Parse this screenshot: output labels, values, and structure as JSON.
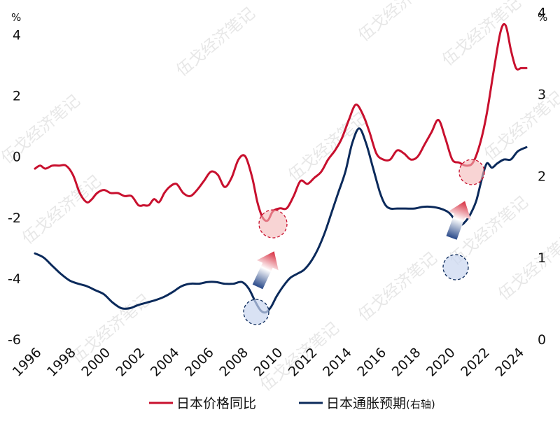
{
  "watermark": "伍戈经济笔记",
  "chart_data": {
    "type": "line",
    "left_axis": {
      "unit": "%",
      "ylim": [
        -6,
        5
      ],
      "ticks": [
        -6,
        -4,
        -2,
        0,
        2,
        4
      ]
    },
    "right_axis": {
      "unit": "%",
      "ylim": [
        0,
        4.1
      ],
      "ticks": [
        0,
        1,
        2,
        3,
        4
      ]
    },
    "x_ticks": [
      "1996",
      "1998",
      "2000",
      "2002",
      "2004",
      "2006",
      "2008",
      "2010",
      "2012",
      "2014",
      "2016",
      "2018",
      "2020",
      "2022",
      "2024"
    ],
    "series": [
      {
        "name": "日本价格同比",
        "axis": "left",
        "color": "#c8102e",
        "x": [
          1996.0,
          1996.3,
          1996.6,
          1997.0,
          1997.4,
          1997.8,
          1998.2,
          1998.6,
          1999.0,
          1999.3,
          1999.6,
          2000.0,
          2000.4,
          2000.8,
          2001.2,
          2001.6,
          2002.0,
          2002.3,
          2002.6,
          2002.9,
          2003.2,
          2003.5,
          2003.8,
          2004.2,
          2004.6,
          2005.0,
          2005.4,
          2005.8,
          2006.2,
          2006.6,
          2007.0,
          2007.4,
          2007.8,
          2008.2,
          2008.6,
          2008.9,
          2009.2,
          2009.5,
          2009.8,
          2010.2,
          2010.6,
          2011.0,
          2011.4,
          2011.8,
          2012.2,
          2012.6,
          2013.0,
          2013.4,
          2013.8,
          2014.2,
          2014.6,
          2015.0,
          2015.4,
          2015.8,
          2016.2,
          2016.6,
          2017.0,
          2017.4,
          2017.8,
          2018.2,
          2018.6,
          2019.0,
          2019.4,
          2019.8,
          2020.2,
          2020.6,
          2021.0,
          2021.4,
          2021.8,
          2022.2,
          2022.6,
          2023.0,
          2023.3,
          2023.6,
          2023.9,
          2024.2,
          2024.5
        ],
        "values": [
          -0.4,
          -0.3,
          -0.4,
          -0.3,
          -0.3,
          -0.3,
          -0.6,
          -1.2,
          -1.5,
          -1.4,
          -1.2,
          -1.1,
          -1.2,
          -1.2,
          -1.3,
          -1.3,
          -1.6,
          -1.6,
          -1.6,
          -1.4,
          -1.5,
          -1.2,
          -1.0,
          -0.9,
          -1.2,
          -1.3,
          -1.1,
          -0.8,
          -0.5,
          -0.6,
          -1.0,
          -0.7,
          -0.1,
          0.0,
          -0.7,
          -1.5,
          -2.0,
          -2.1,
          -1.8,
          -1.7,
          -1.7,
          -1.3,
          -0.8,
          -0.9,
          -0.7,
          -0.5,
          -0.1,
          0.2,
          0.6,
          1.2,
          1.7,
          1.4,
          0.8,
          0.1,
          -0.1,
          -0.1,
          0.2,
          0.1,
          -0.1,
          0.0,
          0.4,
          0.8,
          1.2,
          0.6,
          -0.1,
          -0.2,
          -0.3,
          -0.2,
          0.4,
          1.4,
          2.8,
          4.1,
          4.3,
          3.5,
          2.9,
          2.9,
          2.9
        ]
      },
      {
        "name": "日本通胀预期(右轴)",
        "axis": "right",
        "color": "#0b2a5b",
        "x": [
          1996.0,
          1996.5,
          1997.0,
          1997.5,
          1998.0,
          1998.5,
          1999.0,
          1999.5,
          2000.0,
          2000.5,
          2001.0,
          2001.5,
          2002.0,
          2002.5,
          2003.0,
          2003.5,
          2004.0,
          2004.5,
          2005.0,
          2005.5,
          2006.0,
          2006.5,
          2007.0,
          2007.5,
          2008.0,
          2008.4,
          2008.8,
          2009.1,
          2009.4,
          2009.7,
          2010.0,
          2010.4,
          2010.8,
          2011.2,
          2011.6,
          2012.0,
          2012.4,
          2012.8,
          2013.2,
          2013.6,
          2014.0,
          2014.4,
          2014.8,
          2015.2,
          2015.6,
          2016.0,
          2016.3,
          2016.6,
          2017.0,
          2017.5,
          2018.0,
          2018.5,
          2019.0,
          2019.5,
          2020.0,
          2020.4,
          2020.7,
          2021.0,
          2021.3,
          2021.6,
          2021.9,
          2022.2,
          2022.5,
          2022.8,
          2023.2,
          2023.6,
          2024.0,
          2024.5
        ],
        "values": [
          1.05,
          1.0,
          0.9,
          0.8,
          0.72,
          0.68,
          0.65,
          0.6,
          0.55,
          0.45,
          0.38,
          0.38,
          0.42,
          0.45,
          0.48,
          0.52,
          0.58,
          0.65,
          0.68,
          0.68,
          0.7,
          0.7,
          0.68,
          0.68,
          0.7,
          0.62,
          0.45,
          0.35,
          0.33,
          0.4,
          0.52,
          0.65,
          0.75,
          0.8,
          0.85,
          0.95,
          1.1,
          1.3,
          1.55,
          1.8,
          2.05,
          2.4,
          2.58,
          2.4,
          2.1,
          1.8,
          1.65,
          1.6,
          1.6,
          1.6,
          1.6,
          1.62,
          1.62,
          1.6,
          1.55,
          1.45,
          1.4,
          1.45,
          1.55,
          1.7,
          1.95,
          2.15,
          2.1,
          2.15,
          2.2,
          2.2,
          2.3,
          2.35
        ]
      }
    ],
    "legend": {
      "position": "bottom",
      "entries": [
        "日本价格同比",
        "日本通胀预期",
        "(右轴)"
      ]
    }
  }
}
